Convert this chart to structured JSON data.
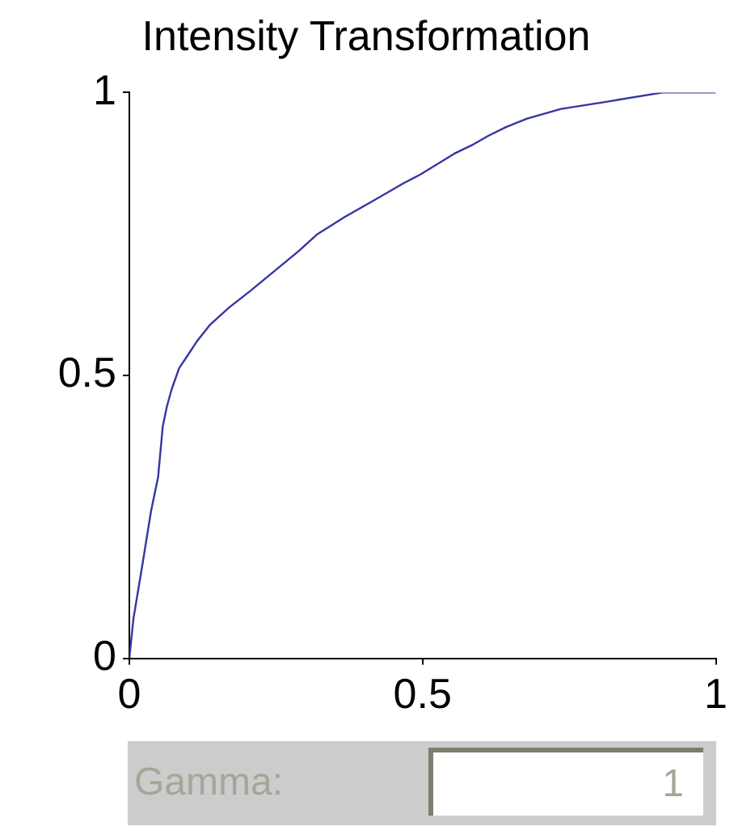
{
  "chart_data": {
    "type": "line",
    "title": "Intensity Transformation",
    "x": [
      0,
      0.007,
      0.023,
      0.037,
      0.049,
      0.057,
      0.064,
      0.072,
      0.085,
      0.096,
      0.115,
      0.138,
      0.17,
      0.207,
      0.248,
      0.289,
      0.321,
      0.367,
      0.418,
      0.468,
      0.496,
      0.554,
      0.584,
      0.611,
      0.642,
      0.678,
      0.736,
      0.815,
      0.909,
      1
    ],
    "series": [
      {
        "color": "#3535a5",
        "values": [
          0,
          0.07,
          0.17,
          0.26,
          0.32,
          0.41,
          0.445,
          0.475,
          0.513,
          0.53,
          0.56,
          0.59,
          0.62,
          0.65,
          0.685,
          0.72,
          0.75,
          0.78,
          0.81,
          0.84,
          0.855,
          0.892,
          0.907,
          0.923,
          0.939,
          0.954,
          0.971,
          0.984,
          1,
          1
        ]
      }
    ],
    "xlim": [
      0,
      1
    ],
    "xticks": [
      0,
      0.5,
      1
    ],
    "ylim": [
      0,
      1
    ],
    "yticks": [
      0,
      0.5,
      1
    ],
    "grid": false,
    "legend": false,
    "marker": "none",
    "line_style": "solid",
    "annotations": [
      "Gamma:",
      "1"
    ]
  }
}
